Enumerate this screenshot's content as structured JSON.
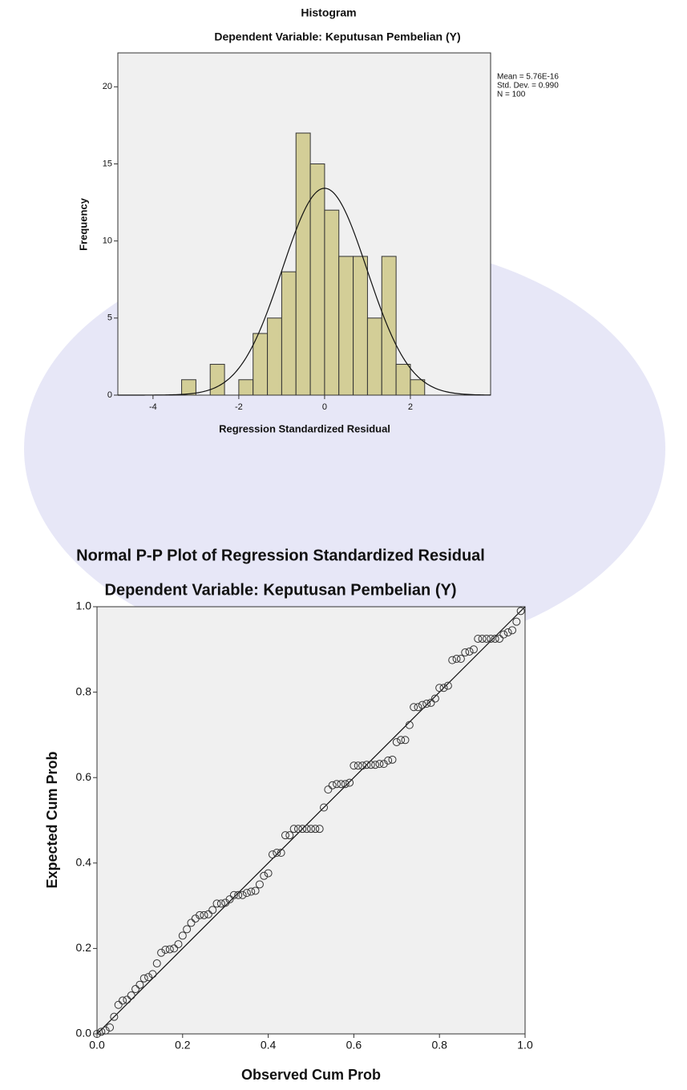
{
  "chart_data": [
    {
      "type": "histogram",
      "title": "Histogram",
      "subtitle": "Dependent Variable: Keputusan Pembelian (Y)",
      "xlabel": "Regression Standardized Residual",
      "ylabel": "Frequency",
      "bins": [
        -3.333,
        -3,
        -2.667,
        -2.333,
        -2,
        -1.667,
        -1.333,
        -1,
        -0.667,
        -0.333,
        0,
        0.333,
        0.667,
        1,
        1.333,
        1.667,
        2,
        2.333
      ],
      "counts": [
        1,
        0,
        2,
        0,
        1,
        4,
        5,
        8,
        17,
        15,
        12,
        9,
        9,
        5,
        9,
        2,
        1
      ],
      "color": "#d3ce97",
      "normal_curve": {
        "values": [
          5.76e-16,
          0.99,
          100
        ],
        "value_labels": [
          "Mean = 5.76E-16",
          "Std. Dev. = 0.990",
          "N = 100"
        ]
      },
      "xlim": [
        -4.82,
        3.87
      ],
      "ylim": [
        0,
        22.2
      ],
      "xticks": [
        -4,
        -2,
        0,
        2
      ],
      "yticks": [
        0,
        5,
        10,
        15,
        20
      ]
    },
    {
      "type": "scatter",
      "title": "Normal P-P Plot of Regression Standardized Residual",
      "subtitle": "Dependent Variable: Keputusan Pembelian (Y)",
      "xlabel": "Observed Cum Prob",
      "ylabel": "Expected Cum Prob",
      "x": [
        0.0,
        0.01,
        0.02,
        0.03,
        0.04,
        0.05,
        0.06,
        0.07,
        0.08,
        0.09,
        0.1,
        0.11,
        0.12,
        0.13,
        0.14,
        0.15,
        0.16,
        0.17,
        0.18,
        0.19,
        0.2,
        0.21,
        0.22,
        0.23,
        0.24,
        0.25,
        0.26,
        0.27,
        0.28,
        0.29,
        0.3,
        0.31,
        0.32,
        0.33,
        0.34,
        0.35,
        0.36,
        0.37,
        0.38,
        0.39,
        0.4,
        0.41,
        0.42,
        0.43,
        0.44,
        0.45,
        0.46,
        0.47,
        0.48,
        0.49,
        0.5,
        0.51,
        0.52,
        0.53,
        0.54,
        0.55,
        0.56,
        0.57,
        0.58,
        0.59,
        0.6,
        0.61,
        0.62,
        0.63,
        0.64,
        0.65,
        0.66,
        0.67,
        0.68,
        0.69,
        0.7,
        0.71,
        0.72,
        0.73,
        0.74,
        0.75,
        0.76,
        0.77,
        0.78,
        0.79,
        0.8,
        0.81,
        0.82,
        0.83,
        0.84,
        0.85,
        0.86,
        0.87,
        0.88,
        0.89,
        0.9,
        0.91,
        0.92,
        0.93,
        0.94,
        0.95,
        0.96,
        0.97,
        0.98,
        0.99
      ],
      "values": [
        0.0,
        0.005,
        0.008,
        0.015,
        0.04,
        0.068,
        0.078,
        0.08,
        0.09,
        0.105,
        0.115,
        0.13,
        0.133,
        0.14,
        0.165,
        0.19,
        0.197,
        0.198,
        0.2,
        0.21,
        0.23,
        0.245,
        0.26,
        0.27,
        0.278,
        0.278,
        0.28,
        0.29,
        0.305,
        0.305,
        0.307,
        0.315,
        0.325,
        0.325,
        0.325,
        0.33,
        0.333,
        0.335,
        0.35,
        0.37,
        0.376,
        0.42,
        0.424,
        0.424,
        0.465,
        0.465,
        0.48,
        0.48,
        0.48,
        0.48,
        0.48,
        0.48,
        0.48,
        0.53,
        0.572,
        0.582,
        0.585,
        0.585,
        0.585,
        0.588,
        0.628,
        0.628,
        0.628,
        0.63,
        0.63,
        0.63,
        0.632,
        0.632,
        0.64,
        0.642,
        0.683,
        0.688,
        0.688,
        0.723,
        0.765,
        0.765,
        0.77,
        0.773,
        0.775,
        0.785,
        0.81,
        0.81,
        0.815,
        0.875,
        0.878,
        0.878,
        0.893,
        0.895,
        0.9,
        0.925,
        0.925,
        0.925,
        0.925,
        0.925,
        0.925,
        0.935,
        0.94,
        0.945,
        0.965,
        0.99
      ],
      "color": "#333333",
      "xlim": [
        0,
        1
      ],
      "ylim": [
        0,
        1
      ],
      "xticks": [
        {
          "value": 0,
          "label": "0.0"
        },
        0.2,
        0.4,
        0.6,
        0.8,
        {
          "value": 1,
          "label": "1.0"
        }
      ],
      "yticks": [
        {
          "value": 0,
          "label": "0.0"
        },
        0.2,
        0.4,
        0.6,
        0.8,
        {
          "value": 1,
          "label": "1.0"
        }
      ]
    }
  ]
}
